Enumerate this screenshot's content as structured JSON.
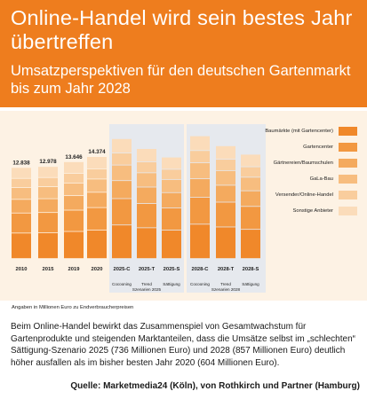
{
  "header": {
    "title": "Online-Handel wird sein bestes Jahr übertreffen",
    "subtitle": "Umsatzperspektiven für den deutschen Gartenmarkt bis zum Jahr 2028"
  },
  "colors": {
    "header_bg": "#ee7d1e",
    "panel_bg": "#fdf2e4",
    "scenario_bg": "#e6e9ee",
    "segments": [
      "#f0882a",
      "#f29841",
      "#f4aa5e",
      "#f7bd7f",
      "#f9cd9d",
      "#fbdcba"
    ]
  },
  "chart_data": {
    "type": "bar",
    "stacked": true,
    "categories": [
      "2010",
      "2015",
      "2019",
      "2020",
      "2025-C",
      "2025-T",
      "2025-S",
      "2028-C",
      "2028-T",
      "2028-S"
    ],
    "totals": [
      12838,
      12978,
      13646,
      14374,
      null,
      null,
      null,
      null,
      null,
      null
    ],
    "total_labels": [
      "12.838",
      "12.978",
      "13.646",
      "14.374",
      "",
      "",
      "",
      "",
      "",
      ""
    ],
    "estimated_totals": [
      12838,
      12978,
      13646,
      14374,
      16900,
      15500,
      14300,
      17300,
      15900,
      14700
    ],
    "legend": [
      "Baumärkte (mit Gartencenter)",
      "Gartencenter",
      "Gärtnereien/Baumschulen",
      "GaLa-Bau",
      "Versender/Online-Handel",
      "Sonstige Anbieter"
    ],
    "segment_shares": [
      0.28,
      0.22,
      0.15,
      0.13,
      0.1,
      0.12
    ],
    "scenario_groups": [
      {
        "label": "Szenarien 2025",
        "sub_labels": [
          "Cocooning",
          "Trend",
          "Sättigung"
        ]
      },
      {
        "label": "Szenarien 2028",
        "sub_labels": [
          "Cocooning",
          "Trend",
          "Sättigung"
        ]
      }
    ],
    "ylim": [
      0,
      19000
    ],
    "footnote": "Angaben in Millionen Euro zu Endverbraucherpreisen",
    "legend_position": "right"
  },
  "body_text": "Beim Online-Handel bewirkt das Zusammenspiel von Gesamtwachstum für Gartenprodukte und steigenden Marktanteilen, dass die Umsätze selbst im „schlechten“ Sättigung-Szenario 2025 (736 Millionen Euro) und 2028 (857 Millionen Euro) deutlich höher ausfallen als im bisher besten Jahr 2020 (604 Millionen Euro).",
  "source": "Quelle: Marketmedia24 (Köln), von Rothkirch und Partner (Hamburg)"
}
